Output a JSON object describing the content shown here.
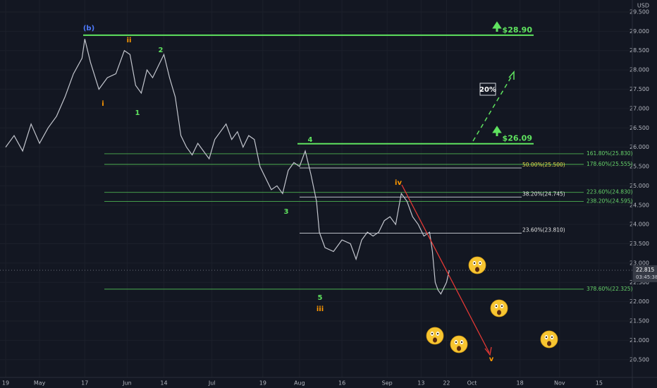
{
  "chart_data": {
    "type": "line",
    "currency": "USD",
    "color": "#c3c6ce",
    "x": [
      0,
      3,
      6,
      9,
      12,
      15,
      18,
      21,
      24,
      27,
      28,
      30,
      33,
      36,
      39,
      42,
      44,
      46,
      48,
      50,
      52,
      54,
      56,
      58,
      60,
      62,
      64,
      66,
      68,
      70,
      72,
      74,
      76,
      78,
      80,
      82,
      84,
      86,
      88,
      90,
      92,
      94,
      96,
      98,
      100,
      102,
      104,
      106,
      108,
      110,
      111,
      113,
      116,
      119,
      122,
      124,
      126,
      128,
      130,
      132,
      134,
      136,
      138,
      140,
      142,
      144,
      146,
      148,
      150,
      151,
      152,
      153,
      154,
      156,
      157
    ],
    "values": [
      26.0,
      26.3,
      25.9,
      26.6,
      26.1,
      26.5,
      26.8,
      27.3,
      27.9,
      28.3,
      28.8,
      28.2,
      27.5,
      27.8,
      27.9,
      28.5,
      28.4,
      27.6,
      27.4,
      28.0,
      27.8,
      28.1,
      28.4,
      27.8,
      27.3,
      26.3,
      26.0,
      25.8,
      26.1,
      25.9,
      25.7,
      26.2,
      26.4,
      26.6,
      26.2,
      26.4,
      26.0,
      26.3,
      26.2,
      25.5,
      25.2,
      24.9,
      25.0,
      24.8,
      25.4,
      25.6,
      25.5,
      25.9,
      25.3,
      24.6,
      23.8,
      23.4,
      23.3,
      23.6,
      23.5,
      23.1,
      23.6,
      23.8,
      23.7,
      23.8,
      24.1,
      24.2,
      24.0,
      24.8,
      24.6,
      24.2,
      24.0,
      23.7,
      23.8,
      23.3,
      22.5,
      22.3,
      22.2,
      22.5,
      22.815
    ],
    "xlim": [
      -2,
      221.75
    ],
    "ylim": [
      20.04,
      29.81
    ],
    "xticks": [
      {
        "value": 0,
        "label": "19"
      },
      {
        "value": 12,
        "label": "May"
      },
      {
        "value": 28,
        "label": "17"
      },
      {
        "value": 43,
        "label": "Jun"
      },
      {
        "value": 56,
        "label": "14"
      },
      {
        "value": 73,
        "label": "Jul"
      },
      {
        "value": 91,
        "label": "19"
      },
      {
        "value": 104,
        "label": "Aug"
      },
      {
        "value": 119,
        "label": "16"
      },
      {
        "value": 135,
        "label": "Sep"
      },
      {
        "value": 147,
        "label": "13"
      },
      {
        "value": 156,
        "label": "22"
      },
      {
        "value": 165,
        "label": "Oct"
      },
      {
        "value": 182,
        "label": "18"
      },
      {
        "value": 196,
        "label": "Nov"
      },
      {
        "value": 210,
        "label": "15"
      }
    ],
    "yticks": [
      {
        "value": 20.5,
        "label": "20.500"
      },
      {
        "value": 21,
        "label": "21.000"
      },
      {
        "value": 21.5,
        "label": "21.500"
      },
      {
        "value": 22,
        "label": "22.000"
      },
      {
        "value": 22.5,
        "label": "22.500"
      },
      {
        "value": 23,
        "label": "23.000"
      },
      {
        "value": 23.5,
        "label": "23.500"
      },
      {
        "value": 24,
        "label": "24.000"
      },
      {
        "value": 24.5,
        "label": "24.500"
      },
      {
        "value": 25,
        "label": "25.000"
      },
      {
        "value": 25.5,
        "label": "25.500"
      },
      {
        "value": 26,
        "label": "26.000"
      },
      {
        "value": 26.5,
        "label": "26.500"
      },
      {
        "value": 27,
        "label": "27.000"
      },
      {
        "value": 27.5,
        "label": "27.500"
      },
      {
        "value": 28,
        "label": "28.000"
      },
      {
        "value": 28.5,
        "label": "28.500"
      },
      {
        "value": 29,
        "label": "29.000"
      },
      {
        "value": 29.5,
        "label": "29.500"
      }
    ],
    "grid": true,
    "last_price": 22.815,
    "countdown": "03:45:38",
    "targets": [
      {
        "value": 28.9,
        "label": "$28.90"
      },
      {
        "value": 26.09,
        "label": "$26.09"
      }
    ],
    "fib_levels": [
      {
        "value": 25.83,
        "label": "161.80%(25.830)"
      },
      {
        "value": 25.555,
        "label": "178.60%(25.555)"
      },
      {
        "value": 24.83,
        "label": "223.60%(24.830)"
      },
      {
        "value": 24.595,
        "label": "238.20%(24.595)"
      },
      {
        "value": 22.325,
        "label": "378.60%(22.325)"
      }
    ],
    "retracements": [
      {
        "value": 25.5,
        "label": "50.00%(25.500)"
      },
      {
        "value": 24.745,
        "label": "38.20%(24.745)"
      },
      {
        "value": 23.81,
        "label": "23.60%(23.810)"
      }
    ],
    "annotations": [
      "(b)",
      "ii",
      "i",
      "2",
      "1",
      "4",
      "3",
      "5",
      "iii",
      "iv",
      "v",
      "20%"
    ]
  }
}
